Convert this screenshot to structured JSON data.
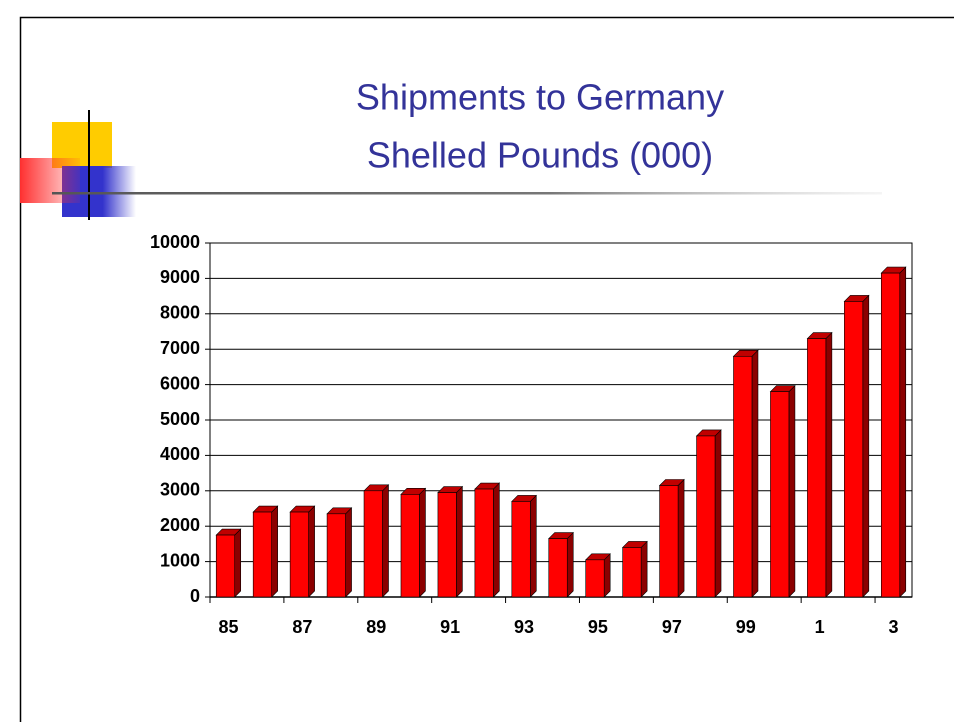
{
  "chart_data": {
    "type": "bar3d",
    "title": "Shipments to Germany",
    "subtitle": "Shelled Pounds (000)",
    "categories": [
      "85",
      null,
      "87",
      null,
      "89",
      null,
      "91",
      null,
      "93",
      null,
      "95",
      null,
      "97",
      null,
      "99",
      null,
      "1",
      null,
      "3"
    ],
    "values": [
      1750,
      2400,
      2400,
      2350,
      3000,
      2900,
      2950,
      3050,
      2700,
      1650,
      1050,
      1400,
      3150,
      4550,
      6800,
      5800,
      7300,
      8350,
      9150
    ],
    "color": "#ff0000",
    "ylim": [
      0,
      10000
    ],
    "yticks": [
      0,
      1000,
      2000,
      3000,
      4000,
      5000,
      6000,
      7000,
      8000,
      9000,
      10000
    ],
    "grid": true
  }
}
